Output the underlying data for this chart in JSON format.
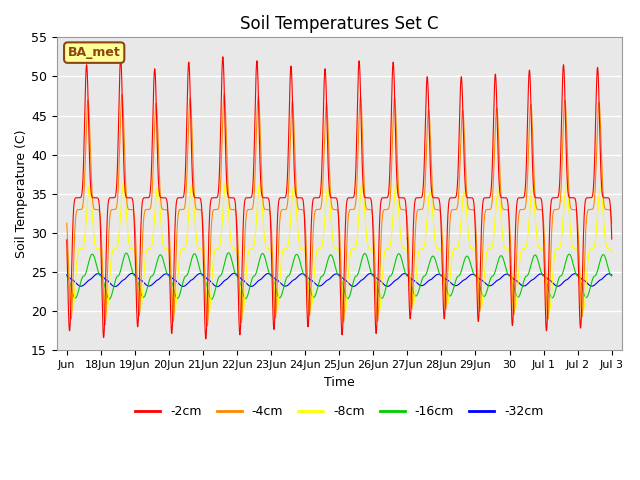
{
  "title": "Soil Temperatures Set C",
  "xlabel": "Time",
  "ylabel": "Soil Temperature (C)",
  "ylim": [
    15,
    55
  ],
  "bg_color": "#e8e8e8",
  "fig_color": "#ffffff",
  "annotation_text": "BA_met",
  "annotation_bg": "#ffff99",
  "annotation_border": "#8B4513",
  "grid_color": "#ffffff",
  "series_colors": {
    "-2cm": "#ff0000",
    "-4cm": "#ff8800",
    "-8cm": "#ffff00",
    "-16cm": "#00cc00",
    "-32cm": "#0000ff"
  },
  "series_order": [
    "-2cm",
    "-4cm",
    "-8cm",
    "-16cm",
    "-32cm"
  ],
  "depth_amplitude": {
    "-2cm": 17.0,
    "-4cm": 14.0,
    "-8cm": 8.0,
    "-16cm": 2.8,
    "-32cm": 0.8
  },
  "depth_mean": {
    "-2cm": 34.5,
    "-4cm": 33.0,
    "-8cm": 28.0,
    "-16cm": 24.5,
    "-32cm": 24.0
  },
  "depth_phase_offset_hours": {
    "-2cm": 0,
    "-4cm": 1,
    "-8cm": 2,
    "-16cm": 4,
    "-32cm": 8
  },
  "depth_sharpness": {
    "-2cm": 8,
    "-4cm": 6,
    "-8cm": 4,
    "-16cm": 2,
    "-32cm": 1.5
  },
  "n_points": 5000,
  "total_days": 16,
  "peak_hour": 14,
  "peak_scale_daily": [
    1.0,
    1.05,
    0.97,
    1.02,
    1.06,
    1.03,
    0.99,
    0.97,
    1.03,
    1.02,
    0.91,
    0.91,
    0.93,
    0.96,
    1.0,
    0.98
  ],
  "legend_ncol": 5,
  "tick_positions": [
    0,
    1,
    2,
    3,
    4,
    5,
    6,
    7,
    8,
    9,
    10,
    11,
    12,
    13,
    14,
    15,
    16
  ],
  "tick_labels": [
    "Jun",
    "18Jun",
    "19Jun",
    "20Jun",
    "21Jun",
    "22Jun",
    "23Jun",
    "24Jun",
    "25Jun",
    "26Jun",
    "27Jun",
    "28Jun",
    "29Jun",
    "30",
    "Jul 1",
    "Jul 2",
    "Jul 3"
  ]
}
